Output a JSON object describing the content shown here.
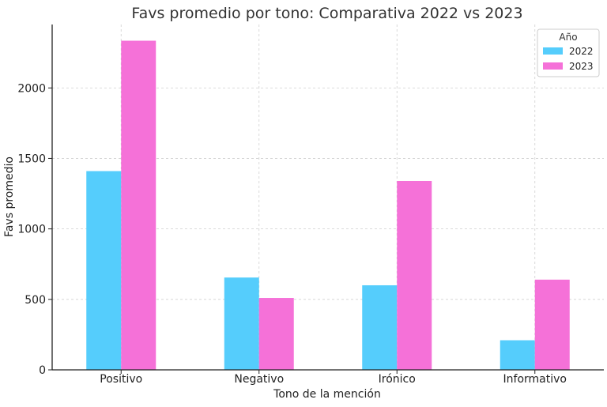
{
  "chart_data": {
    "type": "bar",
    "title": "Favs promedio por tono: Comparativa 2022 vs 2023",
    "xlabel": "Tono de la mención",
    "ylabel": "Favs promedio",
    "categories": [
      "Positivo",
      "Negativo",
      "Irónico",
      "Informativo"
    ],
    "series": [
      {
        "name": "2022",
        "color": "#55cdfc",
        "values": [
          1410,
          655,
          600,
          210
        ]
      },
      {
        "name": "2023",
        "color": "#f571d8",
        "values": [
          2335,
          510,
          1340,
          640
        ]
      }
    ],
    "ylim": [
      0,
      2450
    ],
    "yticks": [
      0,
      500,
      1000,
      1500,
      2000
    ],
    "grid": true,
    "legend": {
      "title": "Año",
      "position": "top-right"
    }
  }
}
